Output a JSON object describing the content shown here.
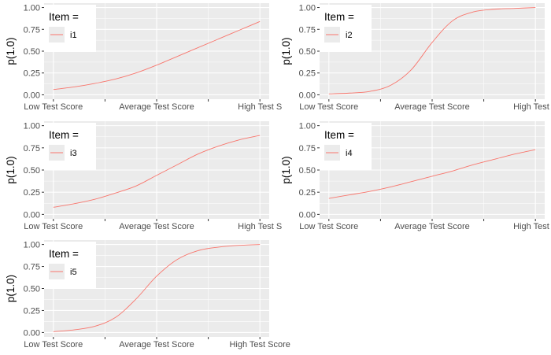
{
  "colors": {
    "panel_bg": "#ebebeb",
    "grid": "#ffffff",
    "curve": "#f8766d",
    "tick": "#333333"
  },
  "chart_data": [
    {
      "type": "line",
      "ylabel": "p(1.0)",
      "x_tick_labels": [
        "Low Test Score",
        "Average Test Score",
        "High Test S"
      ],
      "y_tick_labels": [
        "0.00",
        "0.25",
        "0.50",
        "0.75",
        "1.00"
      ],
      "ylim": [
        0,
        1
      ],
      "legend": {
        "title": "Item =",
        "position": "top-left"
      },
      "series": [
        {
          "name": "i1",
          "x": [
            0,
            0.1,
            0.2,
            0.3,
            0.4,
            0.5,
            0.6,
            0.7,
            0.8,
            0.9,
            1.0
          ],
          "y": [
            0.06,
            0.09,
            0.13,
            0.18,
            0.25,
            0.34,
            0.44,
            0.54,
            0.64,
            0.74,
            0.84
          ]
        }
      ]
    },
    {
      "type": "line",
      "ylabel": "p(1.0)",
      "x_tick_labels": [
        "Low Test Score",
        "Average Test Score",
        "High Test S"
      ],
      "y_tick_labels": [
        "0.00",
        "0.25",
        "0.50",
        "0.75",
        "1.00"
      ],
      "ylim": [
        0,
        1
      ],
      "legend": {
        "title": "Item =",
        "position": "top-left"
      },
      "series": [
        {
          "name": "i2",
          "x": [
            0,
            0.1,
            0.2,
            0.3,
            0.4,
            0.5,
            0.6,
            0.7,
            0.8,
            0.9,
            1.0
          ],
          "y": [
            0.01,
            0.02,
            0.04,
            0.11,
            0.29,
            0.6,
            0.85,
            0.95,
            0.98,
            0.99,
            1.0
          ]
        }
      ]
    },
    {
      "type": "line",
      "ylabel": "p(1.0)",
      "x_tick_labels": [
        "Low Test Score",
        "Average Test Score",
        "High Test S"
      ],
      "y_tick_labels": [
        "0.00",
        "0.25",
        "0.50",
        "0.75",
        "1.00"
      ],
      "ylim": [
        0,
        1
      ],
      "legend": {
        "title": "Item =",
        "position": "top-left"
      },
      "series": [
        {
          "name": "i3",
          "x": [
            0,
            0.1,
            0.2,
            0.3,
            0.4,
            0.5,
            0.6,
            0.7,
            0.8,
            0.9,
            1.0
          ],
          "y": [
            0.08,
            0.12,
            0.17,
            0.24,
            0.32,
            0.44,
            0.56,
            0.68,
            0.77,
            0.84,
            0.89
          ]
        }
      ]
    },
    {
      "type": "line",
      "ylabel": "p(1.0)",
      "x_tick_labels": [
        "Low Test Score",
        "Average Test Score",
        "High Test S"
      ],
      "y_tick_labels": [
        "0.00",
        "0.25",
        "0.50",
        "0.75",
        "1.00"
      ],
      "ylim": [
        0,
        1
      ],
      "legend": {
        "title": "Item =",
        "position": "top-left"
      },
      "series": [
        {
          "name": "i4",
          "x": [
            0,
            0.1,
            0.2,
            0.3,
            0.4,
            0.5,
            0.6,
            0.7,
            0.8,
            0.9,
            1.0
          ],
          "y": [
            0.18,
            0.22,
            0.26,
            0.31,
            0.37,
            0.43,
            0.49,
            0.56,
            0.62,
            0.68,
            0.73
          ]
        }
      ]
    },
    {
      "type": "line",
      "ylabel": "p(1.0)",
      "x_tick_labels": [
        "Low Test Score",
        "Average Test Score",
        "High Test Score"
      ],
      "y_tick_labels": [
        "0.00",
        "0.25",
        "0.50",
        "0.75",
        "1.00"
      ],
      "ylim": [
        0,
        1
      ],
      "legend": {
        "title": "Item =",
        "position": "top-left"
      },
      "series": [
        {
          "name": "i5",
          "x": [
            0,
            0.1,
            0.2,
            0.3,
            0.4,
            0.5,
            0.6,
            0.7,
            0.8,
            0.9,
            1.0
          ],
          "y": [
            0.01,
            0.03,
            0.07,
            0.17,
            0.38,
            0.64,
            0.83,
            0.93,
            0.97,
            0.99,
            1.0
          ]
        }
      ]
    }
  ]
}
